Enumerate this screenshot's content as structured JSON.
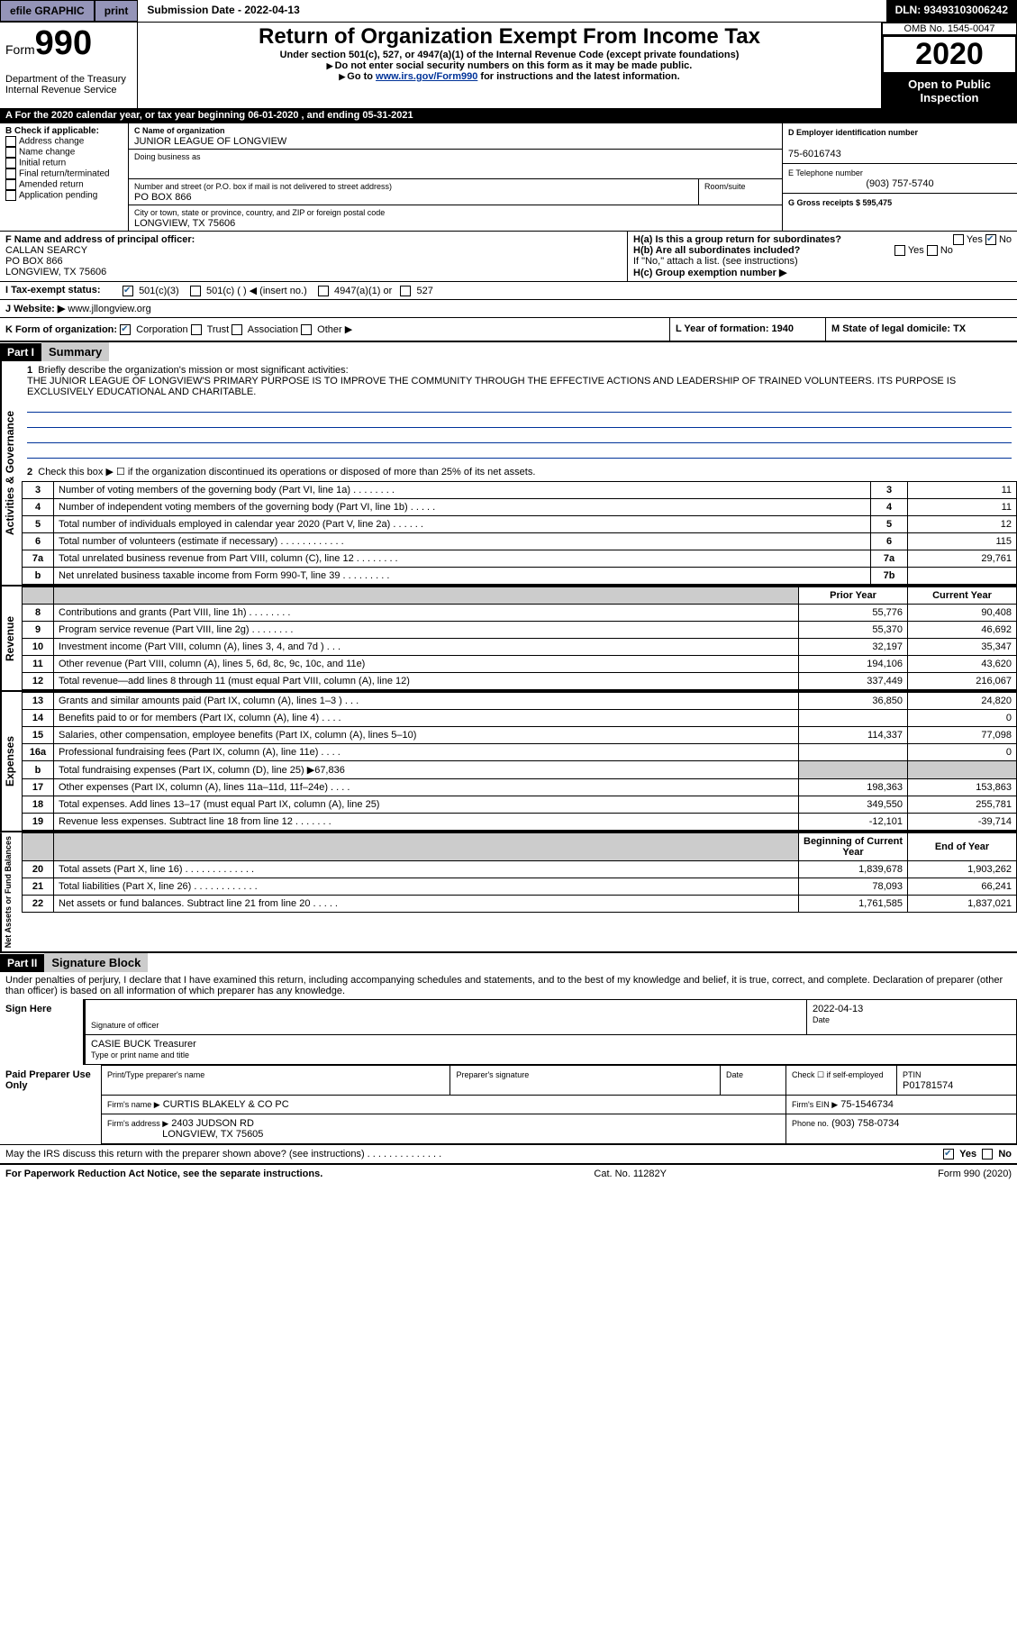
{
  "topbar": {
    "efile": "efile GRAPHIC",
    "print": "print",
    "subdate_label": "Submission Date - 2022-04-13",
    "dln": "DLN: 93493103006242"
  },
  "header": {
    "form_label": "Form",
    "form_number": "990",
    "dept": "Department of the Treasury",
    "irs": "Internal Revenue Service",
    "title": "Return of Organization Exempt From Income Tax",
    "subtitle": "Under section 501(c), 527, or 4947(a)(1) of the Internal Revenue Code (except private foundations)",
    "note1": "Do not enter social security numbers on this form as it may be made public.",
    "note2_pre": "Go to ",
    "note2_link": "www.irs.gov/Form990",
    "note2_post": " for instructions and the latest information.",
    "omb": "OMB No. 1545-0047",
    "year": "2020",
    "open": "Open to Public Inspection"
  },
  "section_a": "A For the 2020 calendar year, or tax year beginning 06-01-2020   , and ending 05-31-2021",
  "box_b": {
    "label": "B Check if applicable:",
    "opts": [
      "Address change",
      "Name change",
      "Initial return",
      "Final return/terminated",
      "Amended return",
      "Application pending"
    ]
  },
  "box_c": {
    "name_label": "C Name of organization",
    "name": "JUNIOR LEAGUE OF LONGVIEW",
    "dba_label": "Doing business as",
    "street_label": "Number and street (or P.O. box if mail is not delivered to street address)",
    "room_label": "Room/suite",
    "street": "PO BOX 866",
    "city_label": "City or town, state or province, country, and ZIP or foreign postal code",
    "city": "LONGVIEW, TX  75606"
  },
  "box_d": {
    "label": "D Employer identification number",
    "val": "75-6016743"
  },
  "box_e": {
    "label": "E Telephone number",
    "val": "(903) 757-5740"
  },
  "box_g": {
    "label": "G Gross receipts $ 595,475"
  },
  "box_f": {
    "label": "F Name and address of principal officer:",
    "name": "CALLAN SEARCY",
    "addr1": "PO BOX 866",
    "addr2": "LONGVIEW, TX  75606"
  },
  "box_h": {
    "a": "H(a)  Is this a group return for subordinates?",
    "a_yes": "Yes",
    "a_no": "No",
    "b": "H(b)  Are all subordinates included?",
    "b_yes": "Yes",
    "b_no": "No",
    "b_note": "If \"No,\" attach a list. (see instructions)",
    "c": "H(c)  Group exemption number ▶"
  },
  "box_i": {
    "label": "I   Tax-exempt status:",
    "opt1": "501(c)(3)",
    "opt2": "501(c) (   ) ◀ (insert no.)",
    "opt3": "4947(a)(1) or",
    "opt4": "527"
  },
  "box_j": {
    "label": "J   Website: ▶",
    "val": "www.jllongview.org"
  },
  "box_k": {
    "label": "K Form of organization:",
    "opts": [
      "Corporation",
      "Trust",
      "Association",
      "Other ▶"
    ]
  },
  "box_l": {
    "label": "L Year of formation: 1940"
  },
  "box_m": {
    "label": "M State of legal domicile: TX"
  },
  "part1": {
    "header": "Part I",
    "title": "Summary",
    "side1": "Activities & Governance",
    "side2": "Revenue",
    "side3": "Expenses",
    "side4": "Net Assets or Fund Balances",
    "q1": "Briefly describe the organization's mission or most significant activities:",
    "mission": "THE JUNIOR LEAGUE OF LONGVIEW'S PRIMARY PURPOSE IS TO IMPROVE THE COMMUNITY THROUGH THE EFFECTIVE ACTIONS AND LEADERSHIP OF TRAINED VOLUNTEERS. ITS PURPOSE IS EXCLUSIVELY EDUCATIONAL AND CHARITABLE.",
    "q2": "Check this box ▶ ☐  if the organization discontinued its operations or disposed of more than 25% of its net assets.",
    "lines_gov": [
      {
        "n": "3",
        "d": "Number of voting members of the governing body (Part VI, line 1a)   .    .    .    .    .    .    .    .",
        "k": "3",
        "v": "11"
      },
      {
        "n": "4",
        "d": "Number of independent voting members of the governing body (Part VI, line 1b)   .    .    .    .    .",
        "k": "4",
        "v": "11"
      },
      {
        "n": "5",
        "d": "Total number of individuals employed in calendar year 2020 (Part V, line 2a)   .    .    .    .    .    .",
        "k": "5",
        "v": "12"
      },
      {
        "n": "6",
        "d": "Total number of volunteers (estimate if necessary)   .    .    .    .    .    .    .    .    .    .    .    .",
        "k": "6",
        "v": "115"
      },
      {
        "n": "7a",
        "d": "Total unrelated business revenue from Part VIII, column (C), line 12   .    .    .    .    .    .    .    .",
        "k": "7a",
        "v": "29,761"
      },
      {
        "n": "b",
        "d": "Net unrelated business taxable income from Form 990-T, line 39   .    .    .    .    .    .    .    .    .",
        "k": "7b",
        "v": ""
      }
    ],
    "head_prior": "Prior Year",
    "head_current": "Current Year",
    "lines_rev": [
      {
        "n": "8",
        "d": "Contributions and grants (Part VIII, line 1h)   .    .    .    .    .    .    .    .",
        "p": "55,776",
        "c": "90,408"
      },
      {
        "n": "9",
        "d": "Program service revenue (Part VIII, line 2g)   .    .    .    .    .    .    .    .",
        "p": "55,370",
        "c": "46,692"
      },
      {
        "n": "10",
        "d": "Investment income (Part VIII, column (A), lines 3, 4, and 7d )   .    .    .",
        "p": "32,197",
        "c": "35,347"
      },
      {
        "n": "11",
        "d": "Other revenue (Part VIII, column (A), lines 5, 6d, 8c, 9c, 10c, and 11e)",
        "p": "194,106",
        "c": "43,620"
      },
      {
        "n": "12",
        "d": "Total revenue—add lines 8 through 11 (must equal Part VIII, column (A), line 12)",
        "p": "337,449",
        "c": "216,067"
      }
    ],
    "lines_exp": [
      {
        "n": "13",
        "d": "Grants and similar amounts paid (Part IX, column (A), lines 1–3 )   .    .    .",
        "p": "36,850",
        "c": "24,820"
      },
      {
        "n": "14",
        "d": "Benefits paid to or for members (Part IX, column (A), line 4)   .    .    .    .",
        "p": "",
        "c": "0"
      },
      {
        "n": "15",
        "d": "Salaries, other compensation, employee benefits (Part IX, column (A), lines 5–10)",
        "p": "114,337",
        "c": "77,098"
      },
      {
        "n": "16a",
        "d": "Professional fundraising fees (Part IX, column (A), line 11e)   .    .    .    .",
        "p": "",
        "c": "0"
      },
      {
        "n": "b",
        "d": "Total fundraising expenses (Part IX, column (D), line 25) ▶67,836",
        "p": "grey",
        "c": "grey"
      },
      {
        "n": "17",
        "d": "Other expenses (Part IX, column (A), lines 11a–11d, 11f–24e)   .    .    .    .",
        "p": "198,363",
        "c": "153,863"
      },
      {
        "n": "18",
        "d": "Total expenses. Add lines 13–17 (must equal Part IX, column (A), line 25)",
        "p": "349,550",
        "c": "255,781"
      },
      {
        "n": "19",
        "d": "Revenue less expenses. Subtract line 18 from line 12   .    .    .    .    .    .    .",
        "p": "-12,101",
        "c": "-39,714"
      }
    ],
    "head_begin": "Beginning of Current Year",
    "head_end": "End of Year",
    "lines_net": [
      {
        "n": "20",
        "d": "Total assets (Part X, line 16)   .    .    .    .    .    .    .    .    .    .    .    .    .",
        "p": "1,839,678",
        "c": "1,903,262"
      },
      {
        "n": "21",
        "d": "Total liabilities (Part X, line 26)   .    .    .    .    .    .    .    .    .    .    .    .",
        "p": "78,093",
        "c": "66,241"
      },
      {
        "n": "22",
        "d": "Net assets or fund balances. Subtract line 21 from line 20   .    .    .    .    .",
        "p": "1,761,585",
        "c": "1,837,021"
      }
    ]
  },
  "part2": {
    "header": "Part II",
    "title": "Signature Block",
    "decl": "Under penalties of perjury, I declare that I have examined this return, including accompanying schedules and statements, and to the best of my knowledge and belief, it is true, correct, and complete. Declaration of preparer (other than officer) is based on all information of which preparer has any knowledge.",
    "sign_here": "Sign Here",
    "sig_officer": "Signature of officer",
    "sig_date": "Date",
    "sig_date_val": "2022-04-13",
    "name_title": "CASIE BUCK  Treasurer",
    "name_title_label": "Type or print name and title",
    "paid": "Paid Preparer Use Only",
    "prep_name_label": "Print/Type preparer's name",
    "prep_sig_label": "Preparer's signature",
    "date_label": "Date",
    "check_label": "Check ☐ if self-employed",
    "ptin_label": "PTIN",
    "ptin": "P01781574",
    "firm_name_label": "Firm's name    ▶",
    "firm_name": "CURTIS BLAKELY & CO PC",
    "firm_ein_label": "Firm's EIN ▶",
    "firm_ein": "75-1546734",
    "firm_addr_label": "Firm's address ▶",
    "firm_addr1": "2403 JUDSON RD",
    "firm_addr2": "LONGVIEW, TX  75605",
    "phone_label": "Phone no.",
    "phone": "(903) 758-0734",
    "discuss": "May the IRS discuss this return with the preparer shown above? (see instructions)   .    .    .    .    .    .    .    .    .    .    .    .    .    .",
    "yes": "Yes",
    "no": "No"
  },
  "footer": {
    "left": "For Paperwork Reduction Act Notice, see the separate instructions.",
    "mid": "Cat. No. 11282Y",
    "right": "Form 990 (2020)"
  }
}
